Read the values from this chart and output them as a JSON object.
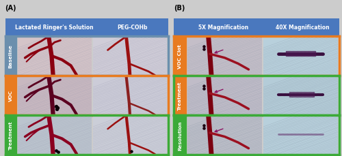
{
  "fig_width": 5.0,
  "fig_height": 2.3,
  "dpi": 100,
  "panel_A_label": "(A)",
  "panel_B_label": "(B)",
  "header_bg": "#4A78BE",
  "header_text_color": "#FFFFFF",
  "row_labels_A": [
    "Baseline",
    "VOC",
    "Treatment"
  ],
  "row_labels_B": [
    "VOC Clot",
    "Treatment",
    "Resolution"
  ],
  "row_colors_A": [
    "#6B8FAD",
    "#E87B20",
    "#3BAA38"
  ],
  "row_colors_B": [
    "#E87B20",
    "#E87B20",
    "#3BAA38"
  ],
  "row_border_colors_A": [
    "#6B8FAD",
    "#E87B20",
    "#3BAA38"
  ],
  "row_border_colors_B": [
    "#E87B20",
    "#3BAA38",
    "#3BAA38"
  ],
  "bg_color": "#CCCCCC",
  "header_A_text1": "Lactated Ringer's Solution",
  "header_A_text2": "PEG-COHb",
  "header_B_text1": "5X Magnification",
  "header_B_text2": "40X Magnification"
}
